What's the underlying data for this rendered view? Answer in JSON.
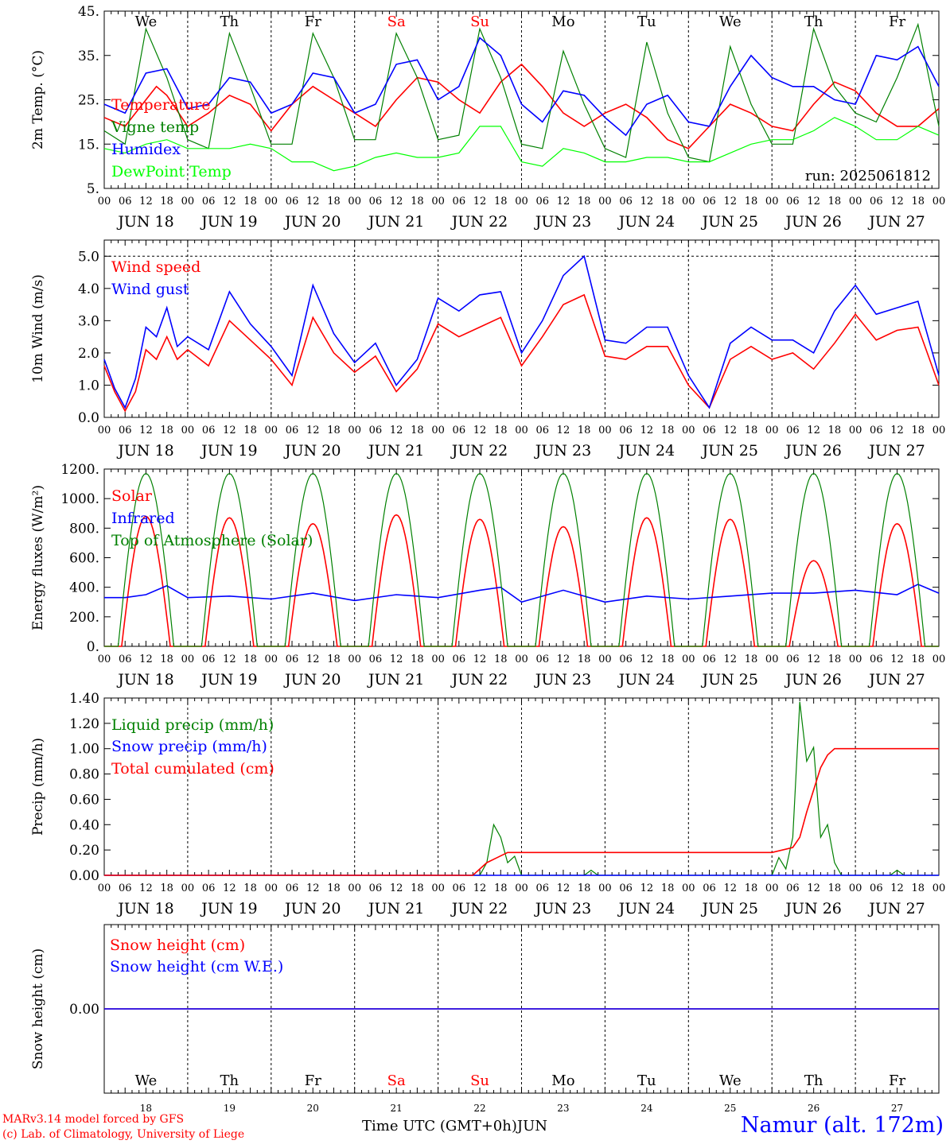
{
  "chart_data": [
    {
      "type": "line",
      "ylabel": "2m Temp. (°C)",
      "ylim": [
        5,
        45
      ],
      "yticks": [
        "5.",
        "15.",
        "25.",
        "35.",
        "45."
      ],
      "ytick_values": [
        5,
        15,
        25,
        35,
        45
      ],
      "dashed_y": [],
      "legend_placement": "top-left",
      "day_labels": [
        "We",
        "Th",
        "Fr",
        "Sa",
        "Su",
        "Mo",
        "Tu",
        "We",
        "Th",
        "Fr"
      ],
      "weekend_days": [
        3,
        4
      ],
      "annotation": "run: 2025061812",
      "date_labels": [
        "JUN 18",
        "JUN 19",
        "JUN 20",
        "JUN 21",
        "JUN 22",
        "JUN 23",
        "JUN 24",
        "JUN 25",
        "JUN 26",
        "JUN 27"
      ],
      "series": [
        {
          "name": "Temperature",
          "color": "#ff0000",
          "x": [
            0,
            6,
            12,
            15,
            18,
            24,
            30,
            36,
            42,
            48,
            54,
            60,
            66,
            72,
            78,
            84,
            90,
            96,
            102,
            108,
            114,
            120,
            126,
            132,
            138,
            144,
            150,
            156,
            162,
            168,
            174,
            180,
            186,
            192,
            198,
            204,
            210,
            216,
            222,
            228,
            234,
            240
          ],
          "values": [
            21,
            19,
            25,
            28,
            26,
            19,
            22,
            26,
            24,
            18,
            24,
            28,
            25,
            22,
            19,
            25,
            30,
            29,
            25,
            22,
            29,
            33,
            28,
            22,
            19,
            22,
            24,
            21,
            16,
            14,
            19,
            24,
            22,
            19,
            18,
            24,
            29,
            27,
            22,
            19,
            19,
            23
          ]
        },
        {
          "name": "Vigne temp",
          "color": "#008000",
          "x": [
            0,
            6,
            12,
            18,
            24,
            30,
            36,
            42,
            48,
            54,
            60,
            66,
            72,
            78,
            84,
            90,
            96,
            102,
            108,
            114,
            120,
            126,
            132,
            138,
            144,
            150,
            156,
            162,
            168,
            174,
            180,
            186,
            192,
            198,
            204,
            210,
            216,
            222,
            228,
            234,
            240
          ],
          "values": [
            18,
            15,
            41,
            30,
            16,
            14,
            40,
            28,
            15,
            15,
            40,
            30,
            16,
            16,
            40,
            30,
            16,
            17,
            41,
            30,
            15,
            14,
            36,
            24,
            14,
            12,
            38,
            22,
            12,
            11,
            37,
            24,
            15,
            15,
            41,
            28,
            22,
            20,
            30,
            42,
            19
          ]
        },
        {
          "name": "Humidex",
          "color": "#0000ff",
          "x": [
            0,
            6,
            12,
            18,
            24,
            30,
            36,
            42,
            48,
            54,
            60,
            66,
            72,
            78,
            84,
            90,
            96,
            102,
            108,
            114,
            120,
            126,
            132,
            138,
            144,
            150,
            156,
            162,
            168,
            174,
            180,
            186,
            192,
            198,
            204,
            210,
            216,
            222,
            228,
            234,
            240
          ],
          "values": [
            24,
            22,
            31,
            32,
            23,
            24,
            30,
            29,
            22,
            24,
            31,
            30,
            22,
            24,
            33,
            34,
            25,
            28,
            39,
            35,
            24,
            20,
            27,
            26,
            21,
            17,
            24,
            26,
            20,
            19,
            28,
            35,
            30,
            28,
            28,
            25,
            24,
            35,
            34,
            37,
            28
          ]
        },
        {
          "name": "DewPoint Temp",
          "color": "#00ff00",
          "x": [
            0,
            6,
            12,
            18,
            24,
            30,
            36,
            42,
            48,
            54,
            60,
            66,
            72,
            78,
            84,
            90,
            96,
            102,
            108,
            114,
            120,
            126,
            132,
            138,
            144,
            150,
            156,
            162,
            168,
            174,
            180,
            186,
            192,
            198,
            204,
            210,
            216,
            222,
            228,
            234,
            240
          ],
          "values": [
            14,
            13,
            15,
            16,
            14,
            14,
            14,
            15,
            14,
            11,
            11,
            9,
            10,
            12,
            13,
            12,
            12,
            13,
            19,
            19,
            11,
            10,
            14,
            13,
            11,
            11,
            12,
            12,
            11,
            11,
            13,
            15,
            16,
            16,
            18,
            21,
            19,
            16,
            16,
            19,
            17
          ]
        }
      ]
    },
    {
      "type": "line",
      "ylabel": "10m Wind (m/s)",
      "ylim": [
        0,
        5.5
      ],
      "yticks": [
        "0.0",
        "1.0",
        "2.0",
        "3.0",
        "4.0",
        "5.0"
      ],
      "ytick_values": [
        0,
        1,
        2,
        3,
        4,
        5
      ],
      "dashed_y": [
        5
      ],
      "legend_placement": "top-left",
      "date_labels": [
        "JUN 18",
        "JUN 19",
        "JUN 20",
        "JUN 21",
        "JUN 22",
        "JUN 23",
        "JUN 24",
        "JUN 25",
        "JUN 26",
        "JUN 27"
      ],
      "series": [
        {
          "name": "Wind speed",
          "color": "#ff0000",
          "x": [
            0,
            3,
            6,
            9,
            12,
            15,
            18,
            21,
            24,
            30,
            36,
            42,
            48,
            54,
            60,
            66,
            72,
            78,
            84,
            90,
            96,
            102,
            108,
            114,
            120,
            126,
            132,
            138,
            144,
            150,
            156,
            162,
            168,
            174,
            180,
            186,
            192,
            198,
            204,
            210,
            216,
            222,
            228,
            234,
            240
          ],
          "values": [
            1.6,
            0.8,
            0.2,
            0.8,
            2.1,
            1.8,
            2.5,
            1.8,
            2.1,
            1.6,
            3.0,
            2.4,
            1.8,
            1.0,
            3.1,
            2.0,
            1.4,
            1.9,
            0.8,
            1.5,
            2.9,
            2.5,
            2.8,
            3.1,
            1.6,
            2.5,
            3.5,
            3.8,
            1.9,
            1.8,
            2.2,
            2.2,
            1.0,
            0.3,
            1.8,
            2.2,
            1.8,
            2.0,
            1.5,
            2.3,
            3.2,
            2.4,
            2.7,
            2.8,
            1.0
          ]
        },
        {
          "name": "Wind gust",
          "color": "#0000ff",
          "x": [
            0,
            3,
            6,
            9,
            12,
            15,
            18,
            21,
            24,
            30,
            36,
            42,
            48,
            54,
            60,
            66,
            72,
            78,
            84,
            90,
            96,
            102,
            108,
            114,
            120,
            126,
            132,
            138,
            144,
            150,
            156,
            162,
            168,
            174,
            180,
            186,
            192,
            198,
            204,
            210,
            216,
            222,
            228,
            234,
            240
          ],
          "values": [
            1.8,
            0.9,
            0.3,
            1.2,
            2.8,
            2.5,
            3.4,
            2.2,
            2.5,
            2.1,
            3.9,
            2.9,
            2.2,
            1.3,
            4.1,
            2.6,
            1.7,
            2.3,
            1.0,
            1.8,
            3.7,
            3.3,
            3.8,
            3.9,
            2.0,
            3.0,
            4.4,
            5.0,
            2.4,
            2.3,
            2.8,
            2.8,
            1.3,
            0.3,
            2.3,
            2.8,
            2.4,
            2.4,
            2.0,
            3.3,
            4.1,
            3.2,
            3.4,
            3.6,
            1.3
          ]
        }
      ]
    },
    {
      "type": "line",
      "ylabel": "Energy fluxes (W/m²)",
      "ylim": [
        0,
        1200
      ],
      "yticks": [
        "0.",
        "200.",
        "400.",
        "600.",
        "800.",
        "1000.",
        "1200."
      ],
      "ytick_values": [
        0,
        200,
        400,
        600,
        800,
        1000,
        1200
      ],
      "dashed_y": [],
      "legend_placement": "top-left",
      "date_labels": [
        "JUN 18",
        "JUN 19",
        "JUN 20",
        "JUN 21",
        "JUN 22",
        "JUN 23",
        "JUN 24",
        "JUN 25",
        "JUN 26",
        "JUN 27"
      ],
      "series": [
        {
          "name": "Solar",
          "color": "#ff0000",
          "daily_peak": [
            880,
            870,
            830,
            890,
            860,
            810,
            870,
            860,
            580,
            830
          ]
        },
        {
          "name": "Infrared",
          "color": "#0000ff",
          "x": [
            0,
            6,
            12,
            18,
            24,
            36,
            48,
            60,
            72,
            84,
            96,
            108,
            114,
            120,
            132,
            144,
            156,
            168,
            180,
            192,
            204,
            216,
            228,
            234,
            240
          ],
          "values": [
            330,
            330,
            350,
            410,
            330,
            340,
            320,
            360,
            310,
            350,
            330,
            380,
            400,
            300,
            380,
            300,
            340,
            320,
            340,
            360,
            360,
            380,
            350,
            420,
            360
          ]
        },
        {
          "name": "Top of Atmosphere (Solar)",
          "color": "#008000",
          "daily_peak": [
            1170,
            1170,
            1170,
            1170,
            1170,
            1170,
            1170,
            1170,
            1170,
            1170
          ]
        }
      ]
    },
    {
      "type": "line",
      "ylabel": "Precip (mm/h)",
      "ylim": [
        0,
        1.4
      ],
      "yticks": [
        "0.00",
        "0.20",
        "0.40",
        "0.60",
        "0.80",
        "1.00",
        "1.20",
        "1.40"
      ],
      "ytick_values": [
        0,
        0.2,
        0.4,
        0.6,
        0.8,
        1.0,
        1.2,
        1.4
      ],
      "dashed_y": [],
      "legend_placement": "top-left",
      "date_labels": [
        "JUN 18",
        "JUN 19",
        "JUN 20",
        "JUN 21",
        "JUN 22",
        "JUN 23",
        "JUN 24",
        "JUN 25",
        "JUN 26",
        "JUN 27"
      ],
      "series": [
        {
          "name": "Liquid precip (mm/h)",
          "color": "#008000",
          "x": [
            0,
            108,
            110,
            112,
            114,
            116,
            118,
            120,
            122,
            124,
            126,
            138,
            140,
            142,
            192,
            194,
            196,
            198,
            200,
            202,
            204,
            206,
            208,
            210,
            212,
            214,
            216,
            226,
            228,
            230,
            240
          ],
          "values": [
            0,
            0,
            0.1,
            0.4,
            0.3,
            0.1,
            0.15,
            0,
            0,
            0,
            0,
            0,
            0.04,
            0,
            0,
            0.14,
            0.05,
            0.3,
            1.37,
            0.9,
            1.01,
            0.3,
            0.4,
            0.1,
            0,
            0,
            0,
            0,
            0.04,
            0,
            0
          ]
        },
        {
          "name": "Snow precip (mm/h)",
          "color": "#0000ff",
          "x": [
            0,
            240
          ],
          "values": [
            0,
            0
          ]
        },
        {
          "name": "Total cumulated (cm)",
          "color": "#ff0000",
          "x": [
            0,
            106,
            110,
            113,
            116,
            120,
            130,
            144,
            192,
            198,
            200,
            202,
            206,
            208,
            210,
            240
          ],
          "values": [
            0,
            0,
            0.1,
            0.14,
            0.18,
            0.18,
            0.18,
            0.18,
            0.18,
            0.22,
            0.3,
            0.5,
            0.85,
            0.95,
            1.0,
            1.0
          ]
        }
      ]
    },
    {
      "type": "line",
      "ylabel": "Snow height (cm)",
      "ylim": [
        -1,
        1
      ],
      "yticks": [
        "0.00"
      ],
      "ytick_values": [
        0
      ],
      "dashed_y": [],
      "legend_placement": "top-left",
      "day_labels": [
        "We",
        "Th",
        "Fr",
        "Sa",
        "Su",
        "Mo",
        "Tu",
        "We",
        "Th",
        "Fr"
      ],
      "weekend_days": [
        3,
        4
      ],
      "day_numbers": [
        "18",
        "19",
        "20",
        "21",
        "22",
        "23",
        "24",
        "25",
        "26",
        "27"
      ],
      "series": [
        {
          "name": "Snow height (cm)",
          "color": "#ff0000",
          "x": [
            0,
            240
          ],
          "values": [
            0,
            0
          ]
        },
        {
          "name": "Snow height (cm W.E.)",
          "color": "#0000ff",
          "x": [
            0,
            240
          ],
          "values": [
            0,
            0
          ]
        }
      ]
    }
  ],
  "hour_labels": [
    "00",
    "06",
    "12",
    "18"
  ],
  "xlabel": "Time UTC (GMT+0h)",
  "month_label": "JUN",
  "footer": {
    "model_line": "MARv3.14 model forced by GFS",
    "credit_line": "(c) Lab. of Climatology, University of Liege",
    "station": "Namur (alt. 172m)"
  },
  "colors": {
    "red": "#ff0000",
    "blue": "#0000ff",
    "green": "#008000",
    "lightgreen": "#00ff00",
    "grid": "#000000"
  }
}
